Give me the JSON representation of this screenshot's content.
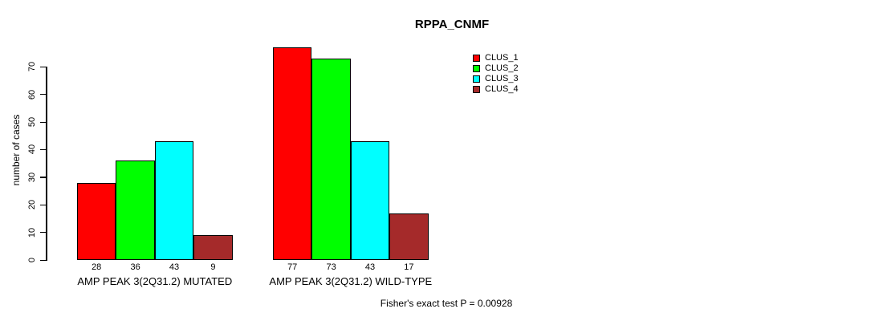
{
  "title": "RPPA_CNMF",
  "chart_data": {
    "type": "bar",
    "title": "RPPA_CNMF",
    "xlabel": "",
    "ylabel": "number of cases",
    "categories": [
      "AMP PEAK  3(2Q31.2) MUTATED",
      "AMP PEAK  3(2Q31.2) WILD-TYPE"
    ],
    "series": [
      {
        "name": "CLUS_1",
        "color": "#ff0000",
        "values": [
          28,
          77
        ]
      },
      {
        "name": "CLUS_2",
        "color": "#00ff00",
        "values": [
          36,
          73
        ]
      },
      {
        "name": "CLUS_3",
        "color": "#00ffff",
        "values": [
          43,
          43
        ]
      },
      {
        "name": "CLUS_4",
        "color": "#a52a2a",
        "values": [
          9,
          17
        ]
      }
    ],
    "yticks": [
      0,
      10,
      20,
      30,
      40,
      50,
      60,
      70
    ],
    "ylim": [
      0,
      70
    ],
    "grid": false,
    "bar_value_labels": true,
    "legend_position": "top-right",
    "annotation": "Fisher's exact test P = 0.00928"
  },
  "colors": {
    "axis": "#000000",
    "text": "#000000",
    "background": "#ffffff"
  }
}
